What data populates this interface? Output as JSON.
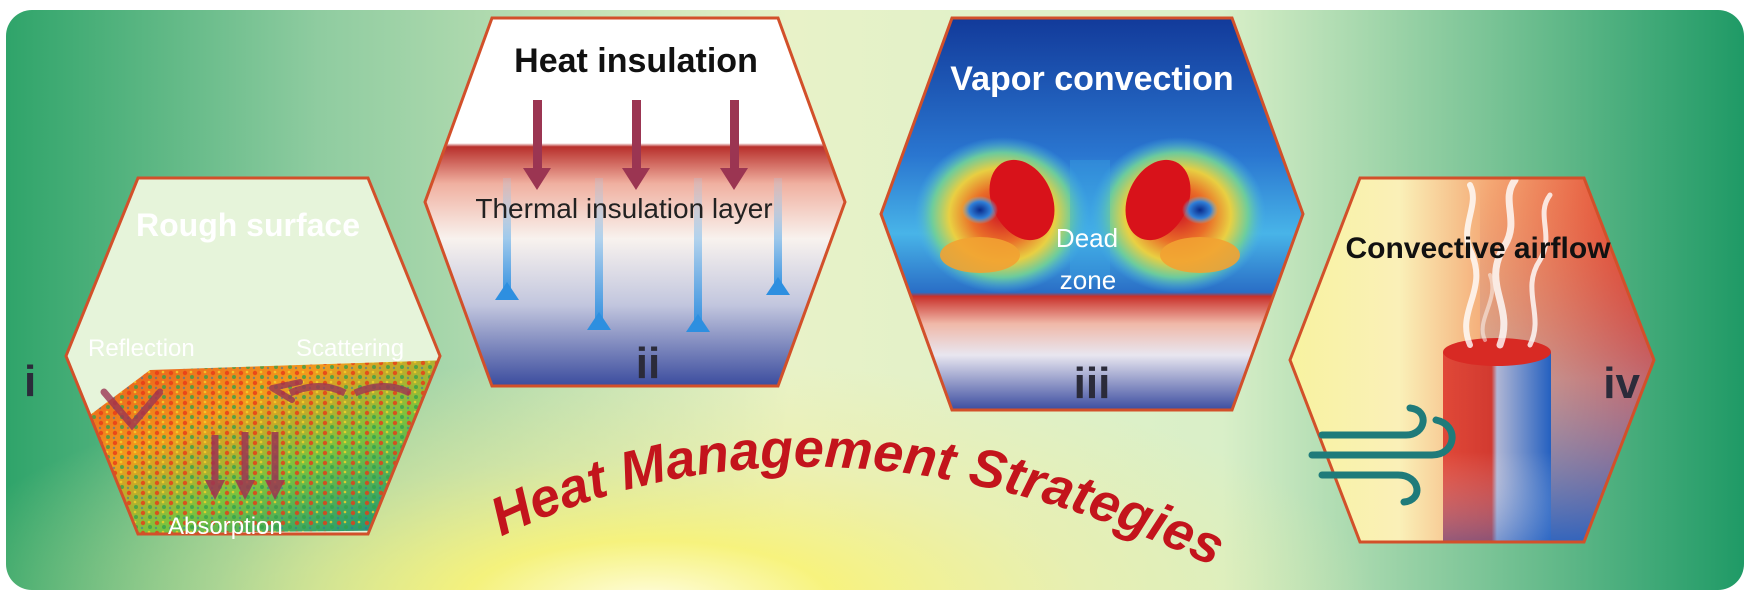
{
  "main_title": "Heat Management Strategies",
  "panels": [
    {
      "numeral": "i",
      "title": "Rough surface",
      "labels": {
        "reflection": "Reflection",
        "scattering": "Scattering",
        "absorption": "Absorption"
      }
    },
    {
      "numeral": "ii",
      "title": "Heat insulation",
      "labels": {
        "layer": "Thermal insulation layer"
      }
    },
    {
      "numeral": "iii",
      "title": "Vapor convection",
      "labels": {
        "dead": "Dead",
        "zone": "zone"
      }
    },
    {
      "numeral": "iv",
      "title": "Convective airflow"
    }
  ],
  "colors": {
    "hex_border": "#d2502a",
    "title_red": "#c3141c",
    "arrow_maroon": "#9b3552",
    "arrow_blue": "#2d8fe0",
    "wind_teal": "#1f7b7a"
  },
  "icons": [
    "wind-icon",
    "smoke-icon",
    "down-arrow-icon",
    "up-arrow-icon"
  ]
}
